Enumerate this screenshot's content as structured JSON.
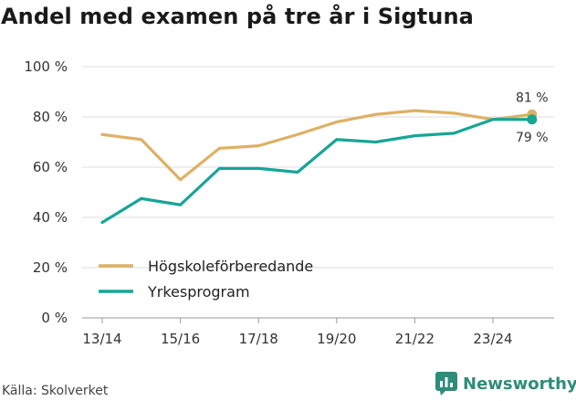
{
  "title": "Andel med examen på tre år i Sigtuna",
  "source": "Källa: Skolverket",
  "brand": "Newsworthy",
  "brand_icon": "newsworthy-logo-icon",
  "colors": {
    "hogskole": "#DDB165",
    "yrke": "#17A596",
    "grid": "#dddddd",
    "text": "#333333",
    "brand": "#2e8c7a"
  },
  "chart_data": {
    "type": "line",
    "title": "Andel med examen på tre år i Sigtuna",
    "xlabel": "",
    "ylabel": "",
    "ylim": [
      0,
      100
    ],
    "yticks": [
      0,
      20,
      40,
      60,
      80,
      100
    ],
    "ytick_labels": [
      "0 %",
      "20 %",
      "40 %",
      "60 %",
      "80 %",
      "100 %"
    ],
    "categories": [
      "13/14",
      "14/15",
      "15/16",
      "16/17",
      "17/18",
      "18/19",
      "19/20",
      "20/21",
      "21/22",
      "22/23",
      "23/24",
      "24/25"
    ],
    "xtick_labels": [
      "13/14",
      "15/16",
      "17/18",
      "19/20",
      "21/22",
      "23/24"
    ],
    "xtick_indices": [
      0,
      2,
      4,
      6,
      8,
      10
    ],
    "legend_position": "bottom-left",
    "series": [
      {
        "name": "Högskoleförberedande",
        "color": "#DDB165",
        "values": [
          73,
          71,
          55,
          67.5,
          68.5,
          73,
          78,
          81,
          82.5,
          81.5,
          79,
          81
        ],
        "end_label": "81 %"
      },
      {
        "name": "Yrkesprogram",
        "color": "#17A596",
        "values": [
          38,
          47.5,
          45,
          59.5,
          59.5,
          58,
          71,
          70,
          72.5,
          73.5,
          79,
          79
        ],
        "end_label": "79 %"
      }
    ]
  }
}
